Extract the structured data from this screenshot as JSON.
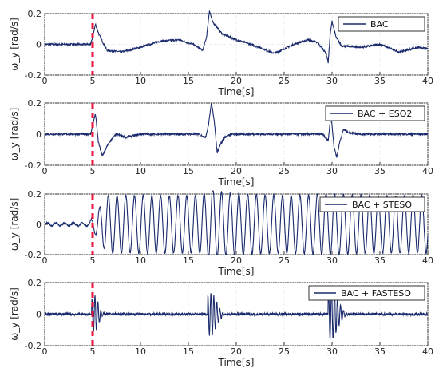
{
  "chart_data": [
    {
      "type": "line",
      "xlabel": "Time[s]",
      "ylabel": "ω_y [rad/s]",
      "xlim": [
        0,
        40
      ],
      "ylim": [
        -0.2,
        0.2
      ],
      "xticks": [
        "0",
        "5",
        "10",
        "15",
        "20",
        "25",
        "30",
        "35",
        "40"
      ],
      "yticks": [
        "0.2",
        "0",
        "-0.2"
      ],
      "grid": true,
      "legend_position": "top-right",
      "marker_line": {
        "x": 5,
        "color": "#e8163c",
        "style": "dashed"
      },
      "series": [
        {
          "name": "BAC",
          "color": "#1a2a6c",
          "x": [
            0,
            2,
            4,
            4.8,
            5.0,
            5.3,
            5.7,
            6.5,
            8,
            10,
            12,
            14,
            15.5,
            16.5,
            16.9,
            17.2,
            17.5,
            18.5,
            20,
            22,
            24,
            26,
            27.5,
            28.5,
            29.4,
            29.6,
            29.8,
            30.0,
            30.4,
            31,
            33,
            35,
            37,
            39,
            40
          ],
          "y": [
            0,
            0,
            0,
            0,
            0.05,
            0.13,
            0.06,
            -0.04,
            -0.05,
            -0.02,
            0.02,
            0.03,
            0,
            -0.04,
            0.05,
            0.22,
            0.15,
            0.07,
            0.03,
            -0.01,
            -0.06,
            0.0,
            0.03,
            0.01,
            -0.06,
            -0.12,
            0.06,
            0.15,
            0.05,
            -0.01,
            -0.02,
            0.0,
            -0.05,
            -0.02,
            -0.03
          ]
        },
        {
          "name": "BAC + ESO2",
          "color": "#1a2a6c",
          "x": [
            0,
            4,
            4.8,
            5.0,
            5.3,
            5.6,
            6.0,
            6.5,
            7.0,
            7.5,
            8.5,
            10,
            12,
            14,
            16,
            16.8,
            17.1,
            17.4,
            17.7,
            18.0,
            18.3,
            18.8,
            19.5,
            21,
            23,
            25,
            27,
            29,
            29.6,
            29.9,
            30.2,
            30.5,
            30.8,
            31.2,
            31.8,
            33,
            36,
            40
          ],
          "y": [
            0,
            0,
            0,
            0.06,
            0.13,
            -0.05,
            -0.14,
            -0.08,
            -0.03,
            0.0,
            -0.02,
            0.0,
            0.0,
            0.0,
            0.0,
            -0.02,
            0.06,
            0.2,
            0.09,
            -0.12,
            -0.07,
            -0.02,
            0.0,
            0.0,
            0.0,
            0.0,
            0.0,
            0.0,
            -0.04,
            0.13,
            -0.08,
            -0.15,
            -0.05,
            0.03,
            0.01,
            0.0,
            0.0,
            0.0
          ]
        },
        {
          "name": "BAC + STESO",
          "color": "#1a2a6c",
          "envelope": {
            "x": [
              0,
              4.5,
              5.0,
              5.8,
              6.5,
              10,
              16,
              17.5,
              20,
              25,
              30,
              35,
              40
            ],
            "a": [
              0.01,
              0.01,
              0.04,
              0.12,
              0.19,
              0.19,
              0.19,
              0.22,
              0.2,
              0.19,
              0.2,
              0.19,
              0.19
            ]
          },
          "oscillation_hz": 1.1
        },
        {
          "name": "BAC + FASTESO",
          "color": "#1a2a6c",
          "bursts": [
            {
              "t": 5.2,
              "amp": 0.12,
              "width": 0.6
            },
            {
              "t": 17.3,
              "amp": 0.14,
              "width": 0.9
            },
            {
              "t": 29.9,
              "amp": 0.17,
              "width": 1.0
            }
          ],
          "oscillation_hz": 3.2,
          "noise": 0.008
        }
      ]
    }
  ]
}
